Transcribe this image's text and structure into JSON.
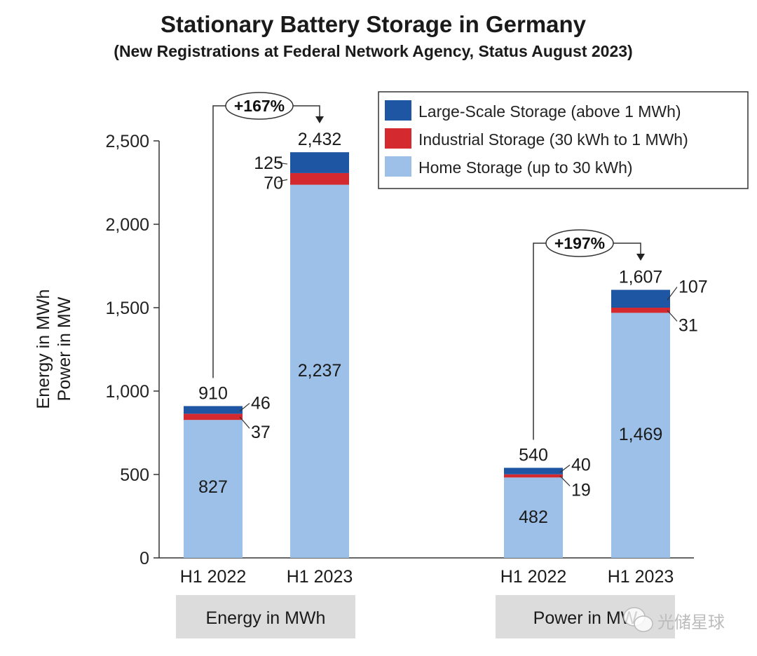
{
  "chart_data": {
    "type": "bar",
    "stacked": true,
    "title": "Stationary Battery Storage in Germany",
    "subtitle": "(New Registrations at Federal Network Agency, Status August 2023)",
    "ylabel_lines": [
      "Energy in MWh",
      "Power in MW"
    ],
    "ylim": [
      0,
      2500
    ],
    "yticks": [
      0,
      500,
      1000,
      1500,
      2000,
      2500
    ],
    "ytick_labels": [
      "0",
      "500",
      "1,000",
      "1,500",
      "2,000",
      "2,500"
    ],
    "legend": {
      "placement": "top-right",
      "entries": [
        {
          "key": "large",
          "label": "Large-Scale Storage (above 1 MWh)",
          "color": "#1f56a3"
        },
        {
          "key": "industrial",
          "label": "Industrial Storage (30 kWh to 1 MWh)",
          "color": "#d42a2f"
        },
        {
          "key": "home",
          "label": "Home Storage (up to 30 kWh)",
          "color": "#9cc0e8"
        }
      ]
    },
    "groups": [
      {
        "label": "Energy in MWh",
        "change_label": "+167%",
        "bars": [
          {
            "category": "H1 2022",
            "home": 827,
            "industrial": 37,
            "large": 46,
            "total": 910,
            "labels": {
              "home": "827",
              "industrial": "37",
              "large": "46",
              "total": "910"
            }
          },
          {
            "category": "H1 2023",
            "home": 2237,
            "industrial": 70,
            "large": 125,
            "total": 2432,
            "labels": {
              "home": "2,237",
              "industrial": "70",
              "large": "125",
              "total": "2,432"
            }
          }
        ]
      },
      {
        "label": "Power in MW",
        "change_label": "+197%",
        "bars": [
          {
            "category": "H1 2022",
            "home": 482,
            "industrial": 19,
            "large": 40,
            "total": 540,
            "labels": {
              "home": "482",
              "industrial": "19",
              "large": "40",
              "total": "540"
            }
          },
          {
            "category": "H1 2023",
            "home": 1469,
            "industrial": 31,
            "large": 107,
            "total": 1607,
            "labels": {
              "home": "1,469",
              "industrial": "31",
              "large": "107",
              "total": "1,607"
            }
          }
        ]
      }
    ]
  },
  "watermark": "光储星球"
}
